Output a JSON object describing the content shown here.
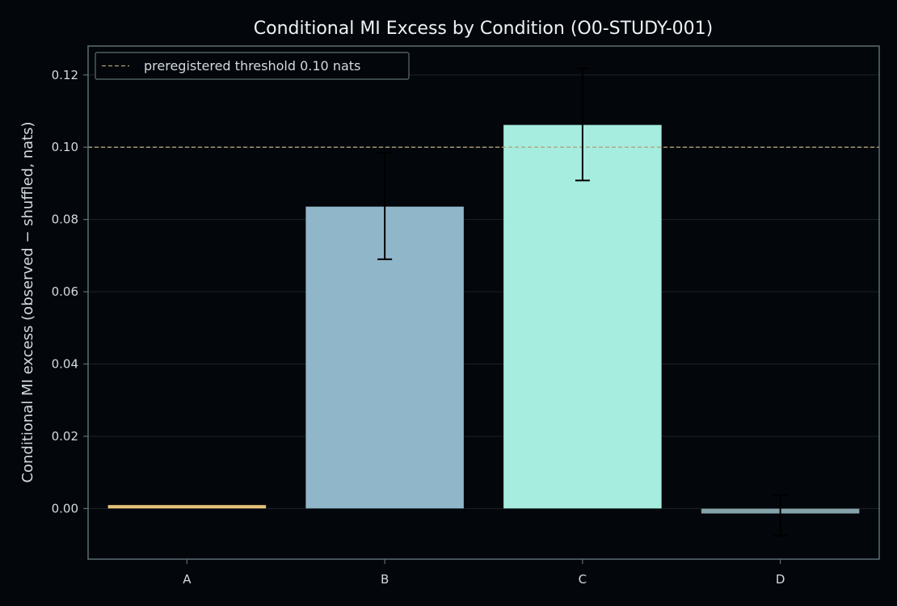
{
  "chart_data": {
    "type": "bar",
    "title": "Conditional MI Excess by Condition (O0-STUDY-001)",
    "xlabel": "",
    "ylabel": "Conditional MI excess  (observed − shuffled, nats)",
    "categories": [
      "A",
      "B",
      "C",
      "D"
    ],
    "values": [
      0.001,
      0.0836,
      0.1062,
      -0.0014
    ],
    "error": [
      {
        "low": null,
        "high": null
      },
      {
        "low": 0.069,
        "high": 0.0985
      },
      {
        "low": 0.0908,
        "high": 0.1218
      },
      {
        "low": -0.0075,
        "high": 0.0037
      }
    ],
    "bar_colors": [
      "#e3c27a",
      "#8fb6c9",
      "#a6ede0",
      "#86a3ab"
    ],
    "ylim": [
      -0.014,
      0.128
    ],
    "yticks": [
      "0.00",
      "0.02",
      "0.04",
      "0.06",
      "0.08",
      "0.10",
      "0.12"
    ],
    "ytick_values": [
      0,
      0.02,
      0.04,
      0.06,
      0.08,
      0.1,
      0.12
    ],
    "grid": true,
    "threshold": {
      "value": 0.1,
      "label": "preregistered threshold  0.10 nats",
      "color": "#b3a479"
    },
    "legend": {
      "position": "top-left"
    }
  },
  "colors": {
    "background": "#03060a",
    "axes_edge": "#5b6f75",
    "grid": "#1c2429",
    "error_bar": "#000000"
  }
}
